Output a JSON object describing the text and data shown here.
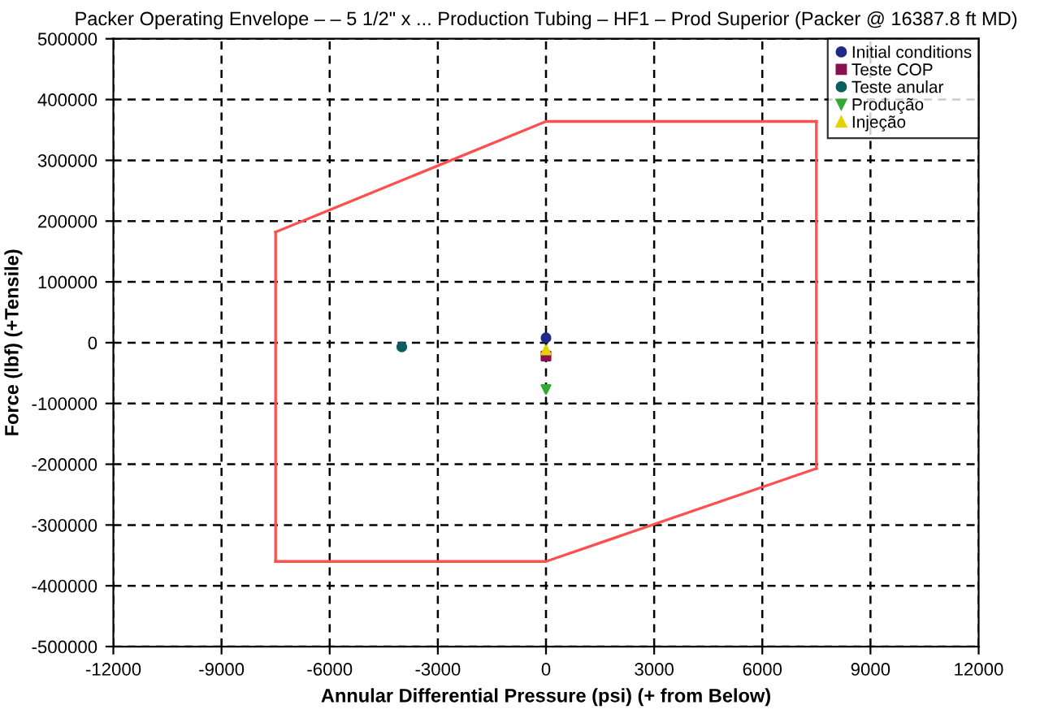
{
  "chart_data": {
    "type": "scatter",
    "title": "Packer Operating Envelope – – 5 1/2\" x ... Production Tubing – HF1 – Prod Superior (Packer @ 16387.8 ft MD)",
    "xlabel": "Annular Differential Pressure (psi) (+ from Below)",
    "ylabel": "Force (lbf) (+Tensile)",
    "series": [
      {
        "type": "line",
        "color": "#ff5050",
        "marker": "none",
        "x": [
          -7500,
          0,
          7500
        ],
        "values": [
          182000,
          364000,
          364000
        ]
      },
      {
        "type": "line",
        "color": "#ff5050",
        "marker": "none",
        "x": [
          7500,
          7500
        ],
        "values": [
          364000,
          -207000
        ]
      },
      {
        "type": "line",
        "color": "#ff5050",
        "marker": "none",
        "x": [
          -7500,
          0,
          7500
        ],
        "values": [
          -360000,
          -360000,
          -207000
        ]
      },
      {
        "type": "line",
        "color": "#ff5050",
        "marker": "none",
        "x": [
          -7500,
          -7500
        ],
        "values": [
          -360000,
          182000
        ]
      },
      {
        "name": "Initial conditions",
        "color": "#1f2a8a",
        "marker": "circle",
        "x": [
          0
        ],
        "values": [
          8000
        ]
      },
      {
        "name": "Teste COP",
        "color": "#8b1050",
        "marker": "square",
        "x": [
          0
        ],
        "values": [
          -22000
        ]
      },
      {
        "name": "Teste anular",
        "color": "#0b5e5e",
        "marker": "circle",
        "x": [
          -4000
        ],
        "values": [
          -7000
        ]
      },
      {
        "name": "Produção",
        "color": "#33aa33",
        "marker": "triangle_down",
        "x": [
          0
        ],
        "values": [
          -77000
        ]
      },
      {
        "name": "Injeção",
        "color": "#e6d200",
        "marker": "triangle",
        "x": [
          0
        ],
        "values": [
          -12000
        ]
      }
    ],
    "xlim": [
      -12000,
      12000
    ],
    "xticks": [
      -12000,
      -9000,
      -6000,
      -3000,
      0,
      3000,
      6000,
      9000,
      12000
    ],
    "ylim": [
      -500000,
      500000
    ],
    "yticks": [
      -500000,
      -400000,
      -300000,
      -200000,
      -100000,
      0,
      100000,
      200000,
      300000,
      400000,
      500000
    ],
    "grid": true,
    "legend": "top right"
  }
}
